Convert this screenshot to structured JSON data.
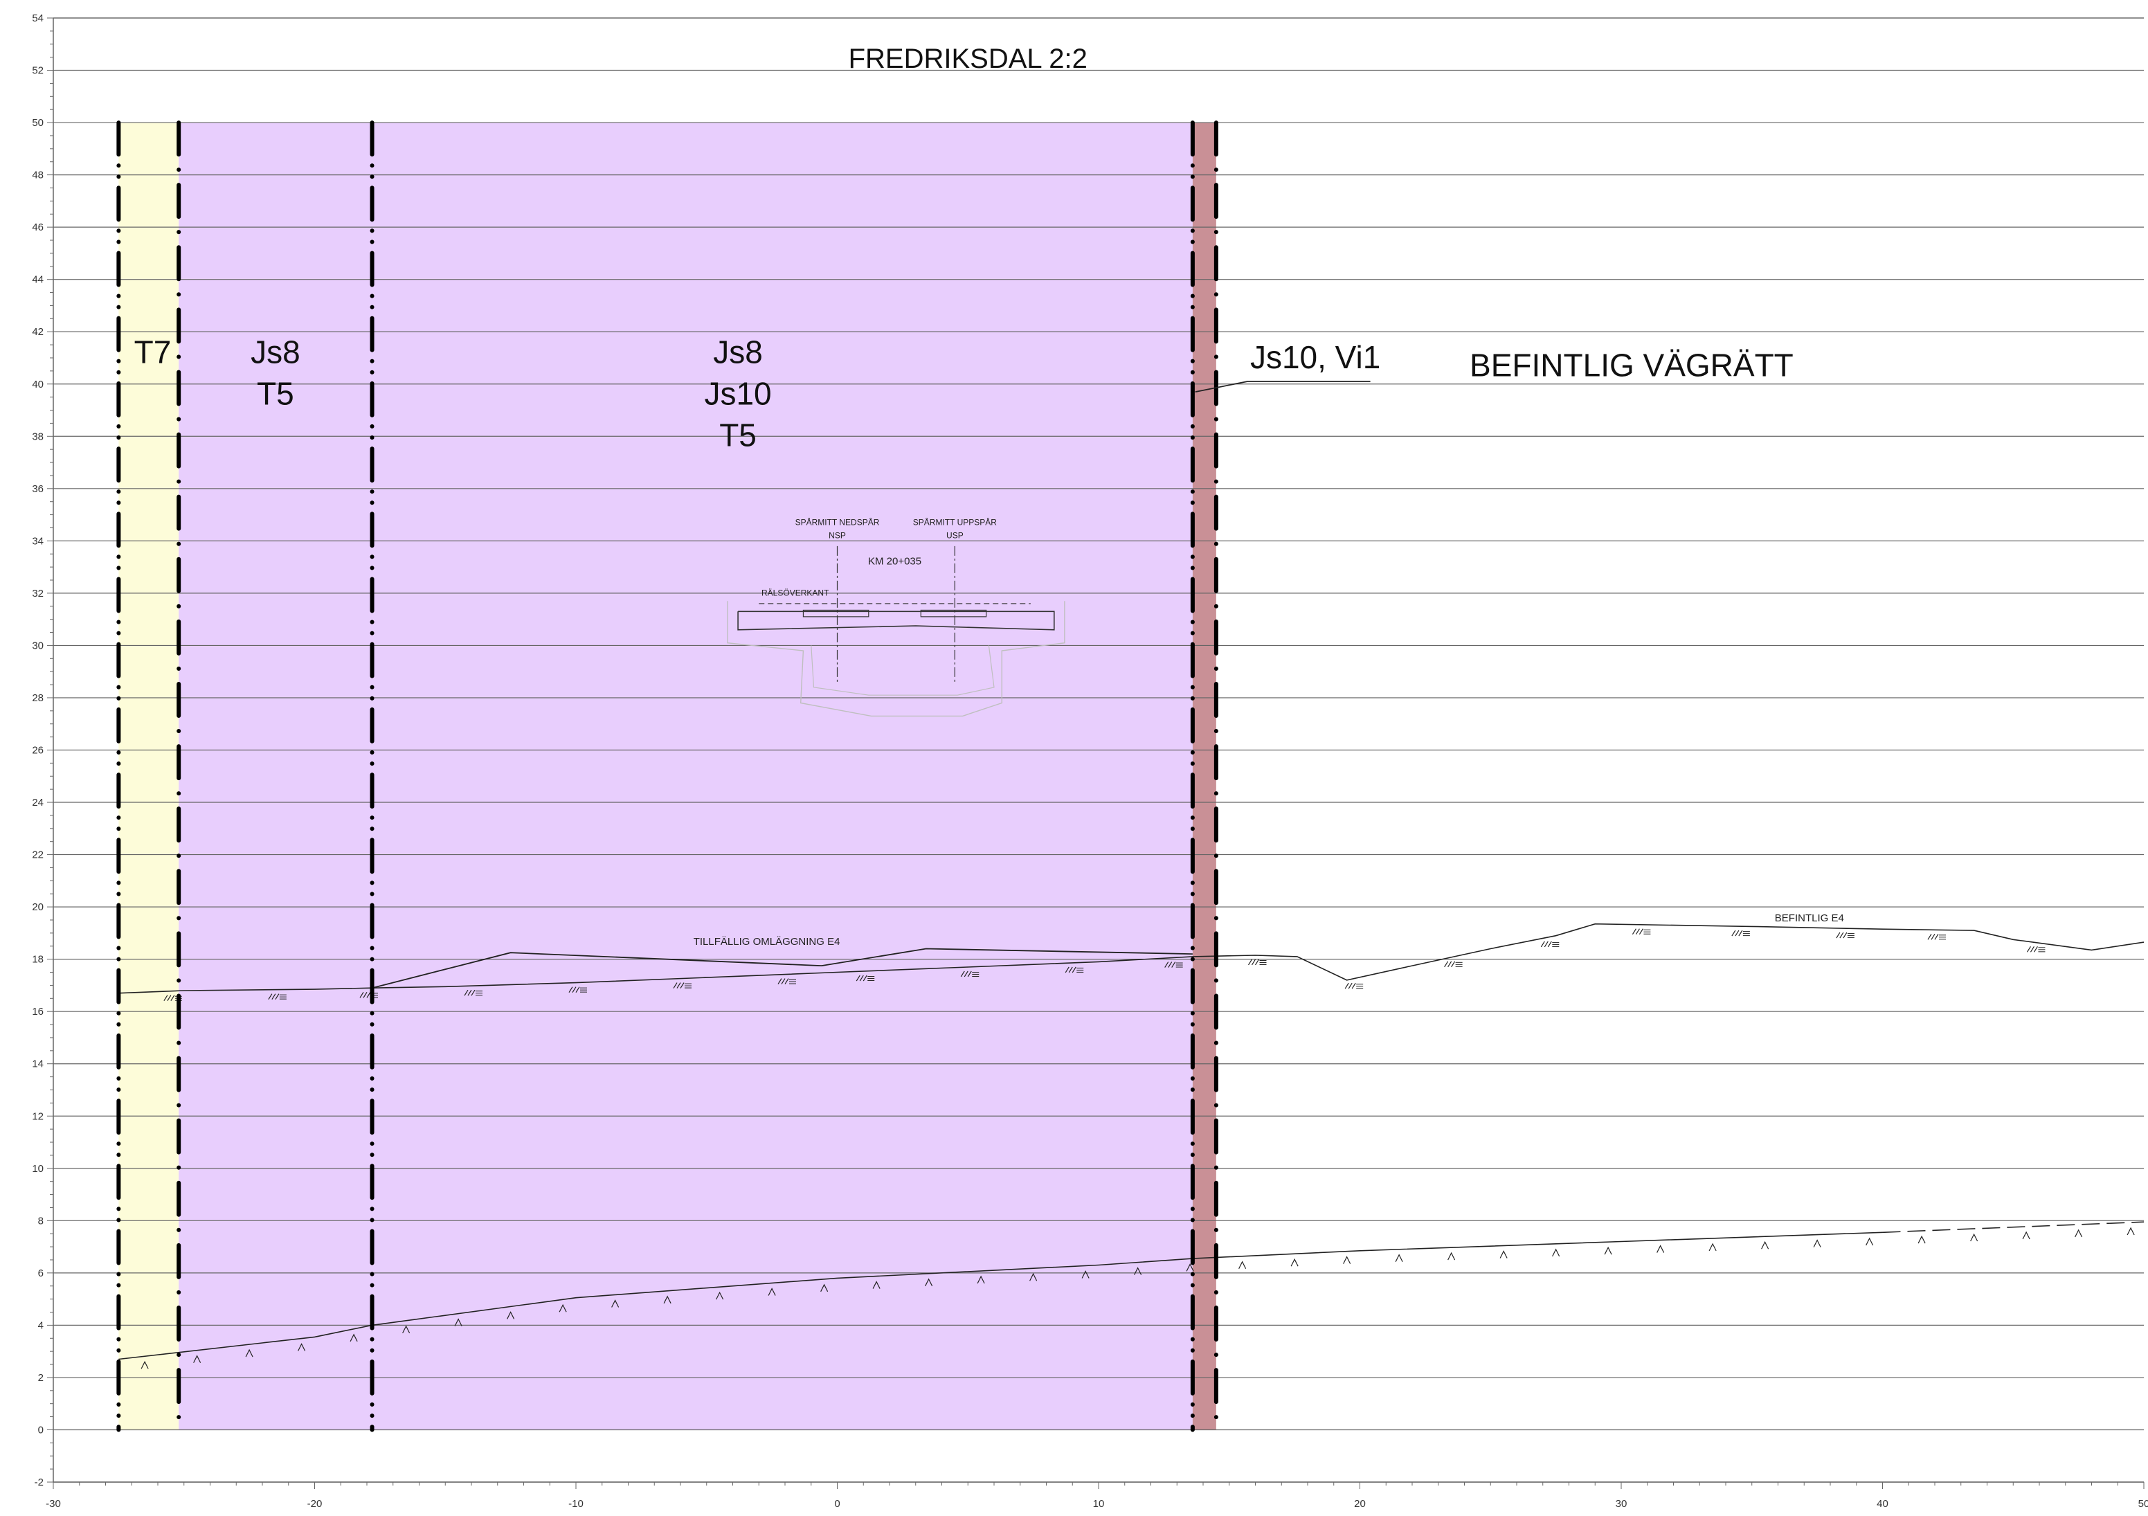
{
  "title": "FREDRIKSDAL 2:2",
  "axes": {
    "x_ticks": [
      -30,
      -20,
      -10,
      0,
      10,
      20,
      30,
      40,
      50
    ],
    "y_ticks": [
      -2,
      0,
      2,
      4,
      6,
      8,
      10,
      12,
      14,
      16,
      18,
      20,
      22,
      24,
      26,
      28,
      30,
      32,
      34,
      36,
      38,
      40,
      42,
      44,
      46,
      48,
      50,
      52,
      54
    ],
    "xlim": [
      -30,
      50
    ],
    "ylim": [
      -2,
      54
    ]
  },
  "zones": [
    {
      "id": "t7",
      "x_from": -27.5,
      "x_to": -25.2,
      "y_from": 0,
      "y_to": 50,
      "color": "#fdfcd9",
      "label_lines": [
        "T7"
      ],
      "label_x": -26.2,
      "label_y": 40.8
    },
    {
      "id": "js8-t5",
      "x_from": -25.2,
      "x_to": -17.8,
      "y_from": 0,
      "y_to": 50,
      "color": "#e8cefd",
      "label_lines": [
        "Js8",
        "T5"
      ],
      "label_x": -21.5,
      "label_y": 40.8
    },
    {
      "id": "js8-js10-t5",
      "x_from": -17.8,
      "x_to": 13.6,
      "y_from": 0,
      "y_to": 50,
      "color": "#e8cefd",
      "label_lines": [
        "Js8",
        "Js10",
        "T5"
      ],
      "label_x": -3.8,
      "label_y": 40.8
    },
    {
      "id": "js10-vi1",
      "x_from": 13.6,
      "x_to": 14.5,
      "y_from": 0,
      "y_to": 50,
      "color": "#c99096",
      "label_lines": [],
      "label_x": 0,
      "label_y": 0
    }
  ],
  "callouts": {
    "js10_vi1": "Js10, Vi1",
    "befintlig_vagratt": "BEFINTLIG VÄGRÄTT"
  },
  "boundaries": [
    {
      "x": -27.5,
      "y_from": 0,
      "y_to": 50,
      "style": "dash-dot-dot"
    },
    {
      "x": -25.2,
      "y_from": 0,
      "y_to": 50,
      "style": "dash-dot"
    },
    {
      "x": -17.8,
      "y_from": 0,
      "y_to": 50,
      "style": "dash-dot-dot"
    },
    {
      "x": 13.6,
      "y_from": 0,
      "y_to": 50,
      "style": "dash-dot-dot"
    },
    {
      "x": 14.5,
      "y_from": 0,
      "y_to": 50,
      "style": "dash-dot"
    }
  ],
  "ground_line": [
    [
      -27.5,
      16.7
    ],
    [
      -25,
      16.8
    ],
    [
      -20,
      16.85
    ],
    [
      -17.8,
      16.9
    ],
    [
      -15,
      16.95
    ],
    [
      -10,
      17.1
    ],
    [
      -5,
      17.3
    ],
    [
      0,
      17.5
    ],
    [
      5,
      17.7
    ],
    [
      10,
      17.9
    ],
    [
      13.6,
      18.1
    ],
    [
      16,
      18.15
    ],
    [
      17.6,
      18.1
    ],
    [
      19.5,
      17.2
    ],
    [
      22,
      17.75
    ],
    [
      25,
      18.4
    ],
    [
      27.5,
      18.9
    ],
    [
      29,
      19.35
    ],
    [
      35,
      19.25
    ],
    [
      40,
      19.15
    ],
    [
      43.5,
      19.1
    ],
    [
      45,
      18.75
    ],
    [
      48,
      18.35
    ],
    [
      50,
      18.65
    ]
  ],
  "ground_hatches": [
    -25.5,
    -21.5,
    -18,
    -14,
    -10,
    -6,
    -2,
    1,
    5,
    9,
    12.8,
    16,
    19.7,
    23.5,
    27.2,
    30.7,
    34.5,
    38.5,
    42,
    45.8
  ],
  "temporary_road": [
    [
      -17.8,
      16.9
    ],
    [
      -12.5,
      18.25
    ],
    [
      -0.6,
      17.75
    ],
    [
      3.4,
      18.4
    ],
    [
      13.6,
      18.2
    ]
  ],
  "rock_line": [
    [
      -27.5,
      2.7
    ],
    [
      -20,
      3.55
    ],
    [
      -17.8,
      4.0
    ],
    [
      -10,
      5.05
    ],
    [
      0,
      5.8
    ],
    [
      10,
      6.3
    ],
    [
      13.6,
      6.55
    ],
    [
      20,
      6.85
    ],
    [
      30,
      7.2
    ],
    [
      40,
      7.55
    ],
    [
      50,
      7.95
    ]
  ],
  "rock_line_dash_from": 40,
  "rock_marks": [
    -26.5,
    -24.5,
    -22.5,
    -20.5,
    -18.5,
    -16.5,
    -14.5,
    -12.5,
    -10.5,
    -8.5,
    -6.5,
    -4.5,
    -2.5,
    -0.5,
    1.5,
    3.5,
    5.5,
    7.5,
    9.5,
    11.5,
    13.5,
    15.5,
    17.5,
    19.5,
    21.5,
    23.5,
    25.5,
    27.5,
    29.5,
    31.5,
    33.5,
    35.5,
    37.5,
    39.5,
    41.5,
    43.5,
    45.5,
    47.5,
    49.5
  ],
  "annotations": {
    "temporary_road_label": "TILLFÄLLIG OMLÄGGNING E4",
    "existing_road_label": "BEFINTLIG E4",
    "track_center_down": "SPÅRMITT NEDSPÅR",
    "track_center_down_abbr": "NSP",
    "track_center_up": "SPÅRMITT UPPSPÅR",
    "track_center_up_abbr": "USP",
    "chainage": "KM 20+035",
    "rail_top": "RÄLSÖVERKANT"
  },
  "colors": {
    "grid": "#666666",
    "boundary": "#000000",
    "line": "#222222",
    "bridge": "#333333",
    "bridge_faint": "#bfbfbf"
  }
}
